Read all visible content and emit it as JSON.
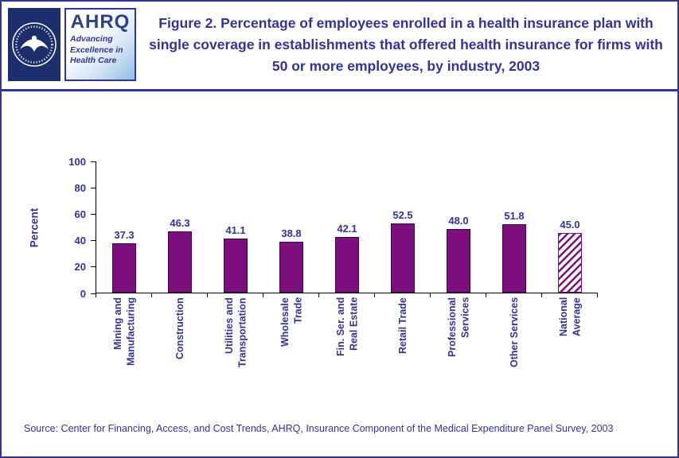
{
  "header": {
    "title": "Figure 2. Percentage of employees enrolled in a health insurance plan with single coverage in establishments that offered health insurance for firms with 50 or more employees, by industry, 2003",
    "logos": {
      "hhs_icon": "hhs-seal-icon",
      "ahrq": {
        "name": "AHRQ",
        "tagline": "Advancing Excellence in Health Care"
      }
    }
  },
  "chart_data": {
    "type": "bar",
    "title": "Percentage of employees enrolled in a health insurance plan with single coverage in establishments that offered health insurance for firms with 50 or more employees, by industry, 2003",
    "xlabel": "",
    "ylabel": "Percent",
    "ylim": [
      0,
      100
    ],
    "yticks": [
      0,
      20,
      40,
      60,
      80,
      100
    ],
    "grid": false,
    "legend": false,
    "categories": [
      "Mining and Manufacturing",
      "Construction",
      "Utilities and Transportation",
      "Wholesale Trade",
      "Fin. Ser. and Real Estate",
      "Retail Trade",
      "Professional Services",
      "Other Services",
      "National Average"
    ],
    "values": [
      37.3,
      46.3,
      41.1,
      38.8,
      42.1,
      52.5,
      48.0,
      51.8,
      45.0
    ],
    "value_labels": [
      "37.3",
      "46.3",
      "41.1",
      "38.8",
      "42.1",
      "52.5",
      "48.0",
      "51.8",
      "45.0"
    ],
    "bar_color": "#7d0e7d",
    "hatched_categories": [
      "National Average"
    ]
  },
  "footer": {
    "source": "Source: Center for Financing, Access, and Cost Trends, AHRQ, Insurance Component of the Medical Expenditure Panel Survey, 2003"
  },
  "colors": {
    "accent_navy": "#333399",
    "bar_purple": "#7d0e7d",
    "hhs_navy": "#1c2e6b"
  }
}
